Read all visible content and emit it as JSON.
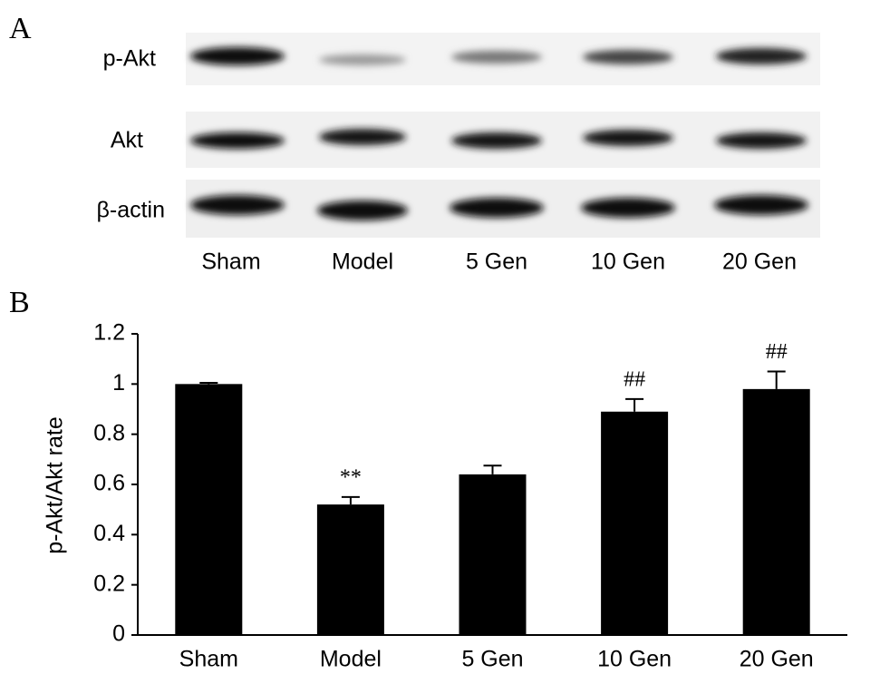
{
  "panels": [
    "A",
    "B"
  ],
  "blot": {
    "rows": [
      "p-Akt",
      "Akt",
      "β-actin"
    ],
    "lanes": [
      "Sham",
      "Model",
      "5 Gen",
      "10 Gen",
      "20 Gen"
    ]
  },
  "chart_data": {
    "type": "bar",
    "y_label": "p-Akt/Akt rate",
    "categories": [
      "Sham",
      "Model",
      "5 Gen",
      "10 Gen",
      "20 Gen"
    ],
    "values": [
      1.0,
      0.52,
      0.64,
      0.89,
      0.98
    ],
    "errors": [
      0.005,
      0.03,
      0.035,
      0.05,
      0.07
    ],
    "annotations": [
      null,
      "**",
      null,
      "##",
      "##"
    ],
    "color": "#000000",
    "ylim": [
      0,
      1.2
    ],
    "yticks": [
      0,
      0.2,
      0.4,
      0.6,
      0.8,
      1,
      1.2
    ],
    "grid": false
  }
}
